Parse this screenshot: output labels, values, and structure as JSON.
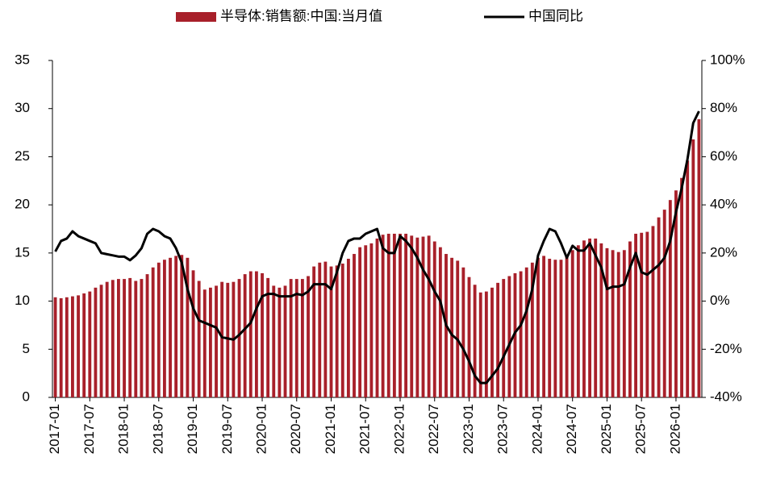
{
  "chart_data": {
    "type": "bar_line",
    "categories": [
      "2017-01",
      null,
      null,
      null,
      null,
      null,
      "2017-07",
      null,
      null,
      null,
      null,
      null,
      "2018-01",
      null,
      null,
      null,
      null,
      null,
      "2018-07",
      null,
      null,
      null,
      null,
      null,
      "2019-01",
      null,
      null,
      null,
      null,
      null,
      "2019-07",
      null,
      null,
      null,
      null,
      null,
      "2020-01",
      null,
      null,
      null,
      null,
      null,
      "2020-07",
      null,
      null,
      null,
      null,
      null,
      "2021-01",
      null,
      null,
      null,
      null,
      null,
      "2021-07",
      null,
      null,
      null,
      null,
      null,
      "2022-01",
      null,
      null,
      null,
      null,
      null,
      "2022-07",
      null,
      null,
      null,
      null,
      null,
      "2023-01",
      null,
      null,
      null,
      null,
      null,
      "2023-07",
      null,
      null,
      null,
      null,
      null,
      "2024-01",
      null,
      null,
      null,
      null,
      null,
      "2024-07",
      null,
      null,
      null,
      null,
      null,
      "2025-01",
      null,
      null,
      null,
      null,
      null,
      "2025-07",
      null,
      null,
      null,
      null,
      null,
      "2026-01",
      null,
      null,
      null,
      null
    ],
    "series": [
      {
        "name": "半导体:销售额:中国:当月值",
        "color": "#a8202a",
        "kind": "bar",
        "axis": "y",
        "values": [
          10.4,
          10.3,
          10.4,
          10.5,
          10.6,
          10.8,
          11.0,
          11.4,
          11.7,
          12.0,
          12.2,
          12.3,
          12.3,
          12.4,
          12.1,
          12.3,
          12.8,
          13.5,
          14.0,
          14.3,
          14.5,
          14.7,
          14.8,
          14.5,
          13.2,
          12.1,
          11.2,
          11.4,
          11.6,
          12.0,
          11.9,
          12.0,
          12.3,
          12.8,
          13.1,
          13.1,
          12.9,
          12.4,
          11.6,
          11.4,
          11.6,
          12.3,
          12.3,
          12.3,
          12.6,
          13.6,
          14.0,
          14.1,
          13.6,
          13.7,
          13.9,
          14.4,
          14.9,
          15.6,
          15.8,
          16.0,
          16.5,
          16.9,
          17.0,
          17.0,
          17.0,
          17.0,
          16.8,
          16.6,
          16.7,
          16.8,
          16.2,
          15.6,
          14.9,
          14.5,
          14.2,
          13.5,
          12.5,
          11.7,
          10.9,
          11.0,
          11.4,
          11.9,
          12.3,
          12.6,
          12.9,
          13.1,
          13.5,
          14.0,
          14.5,
          14.7,
          14.4,
          14.3,
          14.3,
          14.6,
          15.3,
          15.8,
          16.3,
          16.5,
          16.5,
          16.0,
          15.5,
          15.3,
          15.1,
          15.3,
          16.2,
          17.0,
          17.1,
          17.2,
          17.8,
          18.7,
          19.5,
          20.5,
          21.5,
          22.8,
          24.6,
          26.8,
          28.9
        ]
      },
      {
        "name": "中国同比",
        "color": "#000000",
        "kind": "line",
        "axis": "y2",
        "values": [
          20.6,
          25,
          26,
          29,
          27,
          26,
          25,
          24,
          20,
          19.5,
          19,
          18.5,
          18.5,
          17,
          19,
          22,
          28,
          30,
          29,
          27,
          26,
          22,
          16,
          5,
          -3,
          -8,
          -9,
          -10,
          -11,
          -15,
          -15.5,
          -16,
          -14,
          -11.5,
          -9,
          -3,
          2,
          3,
          3,
          2,
          2,
          2,
          3,
          2.5,
          4,
          7,
          7,
          7,
          5,
          12,
          20,
          25,
          26,
          26,
          28,
          29,
          30,
          22,
          20,
          20,
          27,
          25,
          22,
          18,
          13,
          9,
          4,
          0,
          -10,
          -14,
          -16,
          -20,
          -25,
          -31,
          -34,
          -34,
          -31,
          -28,
          -23,
          -18,
          -13,
          -10,
          -4,
          5,
          19,
          25,
          30,
          29,
          24,
          18,
          23,
          21,
          21,
          24,
          19,
          14,
          5,
          6,
          6,
          7,
          14,
          20,
          12,
          11,
          13,
          15,
          18,
          25,
          37,
          47,
          59,
          74,
          78.9
        ]
      }
    ],
    "ylim": [
      0,
      35
    ],
    "yticks": [
      0,
      5,
      10,
      15,
      20,
      25,
      30,
      35
    ],
    "y2lim": [
      -40,
      100
    ],
    "y2ticks": [
      {
        "value": -40,
        "label": "-40%"
      },
      {
        "value": -20,
        "label": "-20%"
      },
      {
        "value": 0,
        "label": "0%"
      },
      {
        "value": 20,
        "label": "20%"
      },
      {
        "value": 40,
        "label": "40%"
      },
      {
        "value": 60,
        "label": "60%"
      },
      {
        "value": 80,
        "label": "80%"
      },
      {
        "value": 100,
        "label": "100%"
      }
    ]
  }
}
